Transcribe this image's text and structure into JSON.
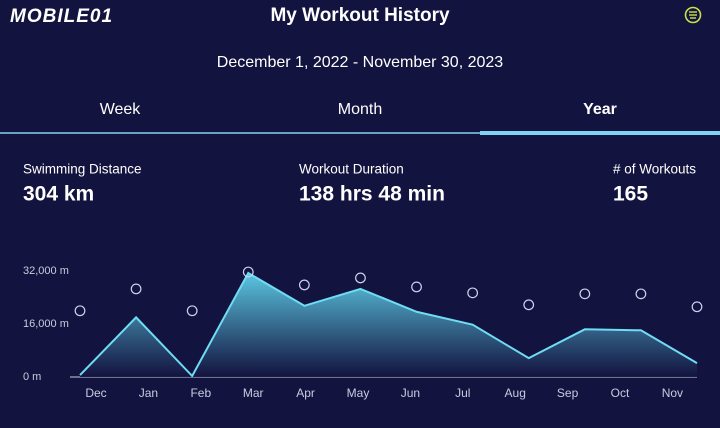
{
  "header": {
    "logo": "MOBILE01",
    "title": "My Workout History",
    "date_range": "December 1, 2022 - November 30, 2023"
  },
  "tabs": [
    "Week",
    "Month",
    "Year"
  ],
  "active_tab": "Year",
  "stats": [
    {
      "label": "Swimming Distance",
      "value": "304 km"
    },
    {
      "label": "Workout Duration",
      "value": "138 hrs 48 min"
    },
    {
      "label": "# of Workouts",
      "value": "165"
    }
  ],
  "chart_data": {
    "type": "area",
    "categories": [
      "Dec",
      "Jan",
      "Feb",
      "Mar",
      "Apr",
      "May",
      "Jun",
      "Jul",
      "Aug",
      "Sep",
      "Oct",
      "Nov"
    ],
    "series": [
      {
        "color": "#6fdcf4",
        "values": [
          600,
          18000,
          300,
          31400,
          21500,
          26600,
          19700,
          15800,
          5700,
          14400,
          14100,
          4200
        ]
      },
      {
        "color": "#c8d4f0",
        "values": [
          20000,
          26600,
          20000,
          31700,
          27800,
          29900,
          27200,
          25400,
          21800,
          25100,
          25100,
          21200
        ]
      }
    ],
    "ylim": [
      0,
      32000
    ],
    "yticks": [
      {
        "value": 0,
        "label": "0 m"
      },
      {
        "value": 16000,
        "label": "16,000 m"
      },
      {
        "value": 32000,
        "label": "32,000 m"
      }
    ]
  }
}
